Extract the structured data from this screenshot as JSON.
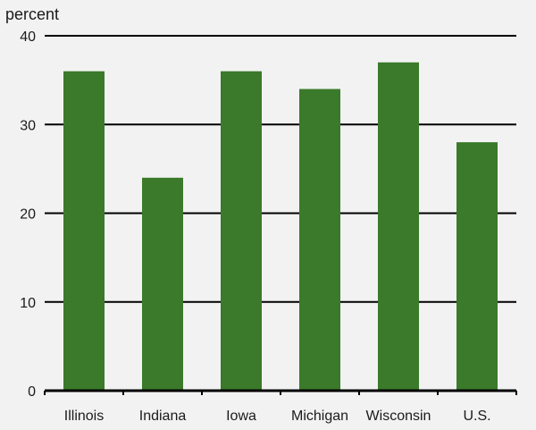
{
  "chart_data": {
    "type": "bar",
    "ylabel": "percent",
    "categories": [
      "Illinois",
      "Indiana",
      "Iowa",
      "Michigan",
      "Wisconsin",
      "U.S."
    ],
    "values": [
      36,
      24,
      36,
      34,
      37,
      28
    ],
    "ylim": [
      0,
      40
    ],
    "yticks": [
      0,
      10,
      20,
      30,
      40
    ],
    "grid": true,
    "colors": {
      "bar": "#3a7a2a",
      "grid": "#000000"
    }
  }
}
